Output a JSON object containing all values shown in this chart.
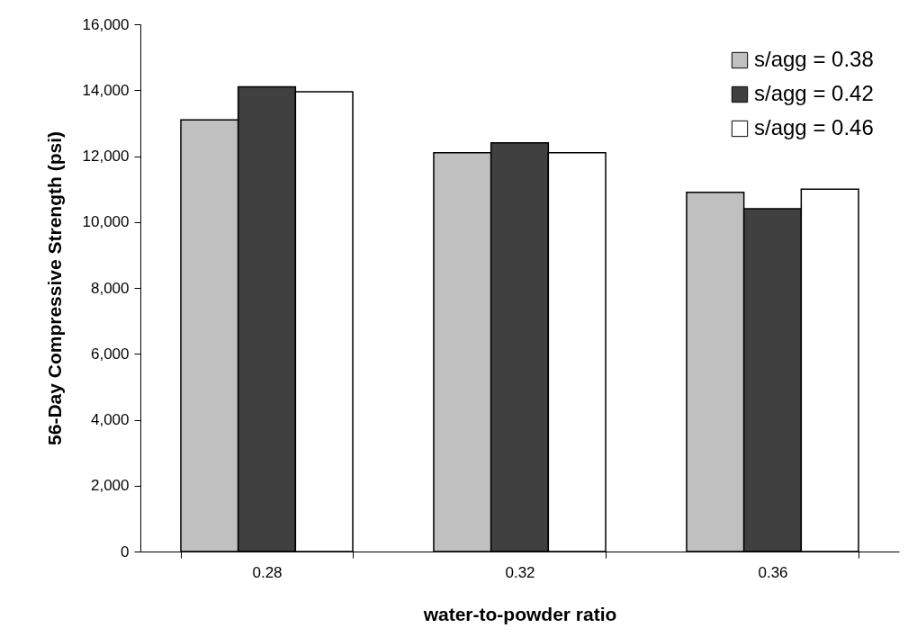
{
  "chart_data": {
    "type": "bar",
    "xlabel": "water-to-powder ratio",
    "ylabel": "56-Day Compressive Strength (psi)",
    "categories": [
      "0.28",
      "0.32",
      "0.36"
    ],
    "series": [
      {
        "name": "s/agg = 0.38",
        "color": "#c0c0c0",
        "values": [
          13100,
          12100,
          10900
        ]
      },
      {
        "name": "s/agg = 0.42",
        "color": "#404040",
        "values": [
          14100,
          12400,
          10400
        ]
      },
      {
        "name": "s/agg = 0.46",
        "color": "#ffffff",
        "values": [
          13950,
          12100,
          11000
        ]
      }
    ],
    "ylim": [
      0,
      16000
    ],
    "yticks": [
      0,
      {
        "value": 2000,
        "label": "2,000"
      },
      {
        "value": 4000,
        "label": "4,000"
      },
      {
        "value": 6000,
        "label": "6,000"
      },
      {
        "value": 8000,
        "label": "8,000"
      },
      {
        "value": 10000,
        "label": "10,000"
      },
      {
        "value": 12000,
        "label": "12,000"
      },
      {
        "value": 14000,
        "label": "14,000"
      },
      {
        "value": 16000,
        "label": "16,000"
      }
    ],
    "grid": false,
    "legend": "top right"
  }
}
